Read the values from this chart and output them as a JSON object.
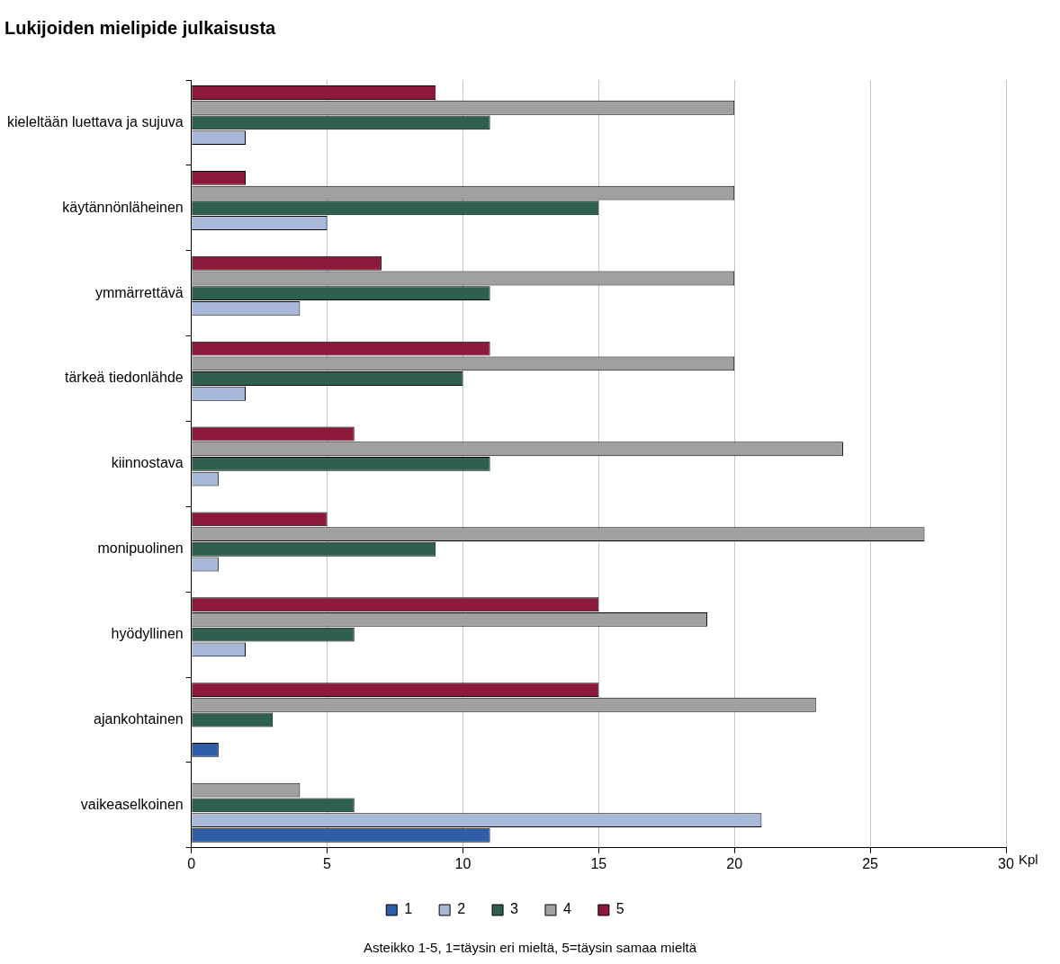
{
  "chart_data": {
    "type": "bar",
    "orientation": "horizontal",
    "title": "Lukijoiden mielipide julkaisusta",
    "xlabel": "Kpl",
    "categories": [
      "kieleltään luettava ja sujuva",
      "käytännönläheinen",
      "ymmärrettävä",
      "tärkeä tiedonlähde",
      "kiinnostava",
      "monipuolinen",
      "hyödyllinen",
      "ajankohtainen",
      "vaikeaselkoinen"
    ],
    "series": [
      {
        "name": "1",
        "color": "#2e5ea8",
        "values": [
          0,
          0,
          0,
          0,
          0,
          0,
          0,
          1,
          11
        ]
      },
      {
        "name": "2",
        "color": "#a8b8d8",
        "values": [
          2,
          5,
          4,
          2,
          1,
          1,
          2,
          0,
          21
        ]
      },
      {
        "name": "3",
        "color": "#2f5f4f",
        "values": [
          11,
          15,
          11,
          10,
          11,
          9,
          6,
          3,
          6
        ]
      },
      {
        "name": "4",
        "color": "#a0a0a0",
        "values": [
          20,
          20,
          20,
          20,
          24,
          27,
          19,
          23,
          4
        ]
      },
      {
        "name": "5",
        "color": "#8b1a3a",
        "values": [
          9,
          2,
          7,
          11,
          6,
          5,
          15,
          15,
          0
        ]
      }
    ],
    "xlim": [
      0,
      30
    ],
    "xticks": [
      0,
      5,
      10,
      15,
      20,
      25,
      30
    ],
    "grid": "x",
    "legend": "bottom",
    "annotations": [
      "Asteikko 1-5, 1=täysin eri mieltä, 5=täysin samaa mieltä"
    ]
  }
}
